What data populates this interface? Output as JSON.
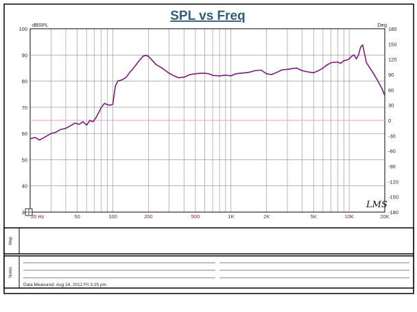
{
  "chart_data": {
    "type": "line",
    "title": "SPL vs Freq",
    "left_axis_label": "dBSPL",
    "right_axis_label": "Deg",
    "xscale": "log",
    "xlim": [
      20,
      20000
    ],
    "ylim": [
      30,
      100
    ],
    "y2lim": [
      -180,
      180
    ],
    "y_ticks": [
      "100",
      "90",
      "80",
      "70",
      "60",
      "50",
      "40",
      "30"
    ],
    "y2_ticks": [
      "180",
      "150",
      "120",
      "90",
      "60",
      "30",
      "0",
      "-30",
      "-60",
      "-90",
      "-120",
      "-150",
      "-180"
    ],
    "x_tick_labels": [
      {
        "value": 20,
        "label": "20 Hz"
      },
      {
        "value": 50,
        "label": "50"
      },
      {
        "value": 100,
        "label": "100"
      },
      {
        "value": 200,
        "label": "200"
      },
      {
        "value": 500,
        "label": "500"
      },
      {
        "value": 1000,
        "label": "1K"
      },
      {
        "value": 2000,
        "label": "2K"
      },
      {
        "value": 5000,
        "label": "5K"
      },
      {
        "value": 10000,
        "label": "10K"
      },
      {
        "value": 20000,
        "label": "20K"
      }
    ],
    "grid": true,
    "series": [
      {
        "color": "#7a1a7a",
        "x": [
          20,
          22,
          24,
          27,
          30,
          33,
          36,
          40,
          44,
          48,
          52,
          56,
          60,
          64,
          68,
          72,
          76,
          80,
          85,
          90,
          95,
          100,
          105,
          110,
          120,
          130,
          140,
          150,
          165,
          180,
          190,
          200,
          215,
          230,
          250,
          270,
          300,
          330,
          360,
          400,
          450,
          500,
          550,
          600,
          650,
          700,
          800,
          900,
          1000,
          1100,
          1200,
          1400,
          1600,
          1800,
          2000,
          2200,
          2400,
          2700,
          3000,
          3300,
          3600,
          4000,
          4500,
          5000,
          5500,
          6000,
          6500,
          7000,
          7500,
          8000,
          8500,
          9000,
          9500,
          10000,
          10500,
          11000,
          11500,
          12000,
          12500,
          13000,
          14000,
          15000,
          16000,
          17000,
          18000,
          19000,
          20000
        ],
        "y": [
          58,
          58.5,
          57.5,
          58.8,
          60,
          60.5,
          61.5,
          62,
          63,
          64,
          63.5,
          64.5,
          63.2,
          65,
          64.5,
          66,
          68,
          70,
          71.5,
          71,
          70.8,
          71.2,
          78,
          80,
          80.5,
          81.5,
          83.5,
          85,
          87.5,
          89.5,
          89.8,
          89.5,
          88,
          86.5,
          85.5,
          84.5,
          83,
          82,
          81.3,
          81.5,
          82.5,
          82.8,
          83,
          83,
          82.8,
          82.2,
          82,
          82.3,
          82,
          82.8,
          83,
          83.3,
          84,
          84.2,
          82.8,
          82.5,
          83.2,
          84.3,
          84.5,
          84.8,
          85,
          84,
          83.5,
          83.2,
          84,
          85,
          86.2,
          87,
          87.2,
          87.2,
          86.8,
          87.8,
          88,
          88.5,
          89.5,
          90,
          88.5,
          90,
          93,
          93.8,
          87,
          85,
          83,
          81,
          79,
          77,
          74.5
        ]
      }
    ],
    "reference_line": {
      "axis": "y2",
      "value": 0,
      "color": "#e8a0e0"
    },
    "annotation": "LMS"
  },
  "info_panel": {
    "map_label": "Map",
    "notes_label": "Notes",
    "data_measured": "Data Measured: Aug 24, 2012  Fri  3:25 pm"
  }
}
